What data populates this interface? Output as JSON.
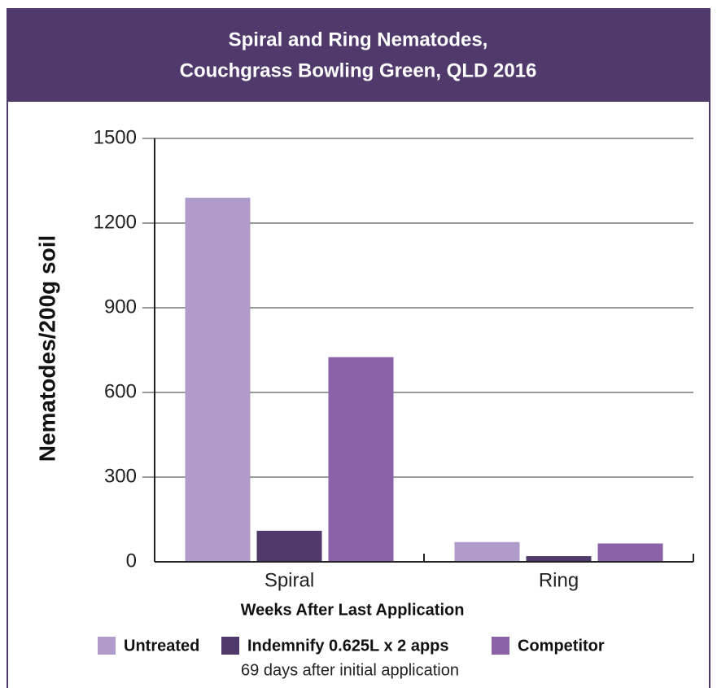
{
  "chart_data": {
    "type": "bar",
    "title": [
      "Spiral and Ring Nematodes,",
      "Couchgrass Bowling Green, QLD 2016"
    ],
    "y_label": "Nematodes/200g soil",
    "x_label": "Weeks After Last Application",
    "note": "69 days after initial application",
    "categories": [
      "Spiral",
      "Ring"
    ],
    "series": [
      {
        "name": "Untreated",
        "color": "#b09ccb",
        "values": [
          1290,
          70
        ]
      },
      {
        "name": "Indemnify 0.625L x 2 apps",
        "color": "#4f3a6b",
        "values": [
          110,
          20
        ]
      },
      {
        "name": "Competitor",
        "color": "#8b62a8",
        "values": [
          725,
          65
        ]
      }
    ],
    "ylim": [
      0,
      1500
    ],
    "yticks": [
      0,
      300,
      600,
      900,
      1200,
      1500
    ],
    "grid": true
  }
}
